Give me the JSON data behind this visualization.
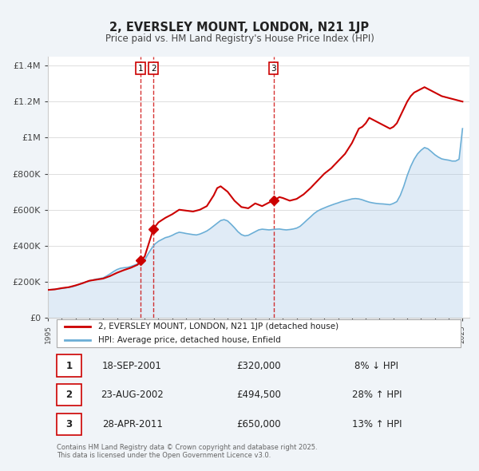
{
  "title": "2, EVERSLEY MOUNT, LONDON, N21 1JP",
  "subtitle": "Price paid vs. HM Land Registry's House Price Index (HPI)",
  "ylabel": "",
  "background_color": "#f0f4f8",
  "plot_bg_color": "#ffffff",
  "legend_label_red": "2, EVERSLEY MOUNT, LONDON, N21 1JP (detached house)",
  "legend_label_blue": "HPI: Average price, detached house, Enfield",
  "footer": "Contains HM Land Registry data © Crown copyright and database right 2025.\nThis data is licensed under the Open Government Licence v3.0.",
  "transactions": [
    {
      "num": 1,
      "date": "18-SEP-2001",
      "price": "£320,000",
      "hpi_change": "8% ↓ HPI",
      "year": 2001.72
    },
    {
      "num": 2,
      "date": "23-AUG-2002",
      "price": "£494,500",
      "hpi_change": "28% ↑ HPI",
      "year": 2002.64
    },
    {
      "num": 3,
      "date": "28-APR-2011",
      "price": "£650,000",
      "hpi_change": "13% ↑ HPI",
      "year": 2011.32
    }
  ],
  "hpi_color": "#a8c8e8",
  "hpi_line_color": "#6baed6",
  "price_color": "#cc0000",
  "vline_color": "#cc0000",
  "marker_color": "#cc0000",
  "ylim": [
    0,
    1450000
  ],
  "yticks": [
    0,
    200000,
    400000,
    600000,
    800000,
    1000000,
    1200000,
    1400000
  ],
  "ytick_labels": [
    "£0",
    "£200K",
    "£400K",
    "£600K",
    "£800K",
    "£1M",
    "£1.2M",
    "£1.4M"
  ],
  "hpi_data": {
    "years": [
      1995.0,
      1995.25,
      1995.5,
      1995.75,
      1996.0,
      1996.25,
      1996.5,
      1996.75,
      1997.0,
      1997.25,
      1997.5,
      1997.75,
      1998.0,
      1998.25,
      1998.5,
      1998.75,
      1999.0,
      1999.25,
      1999.5,
      1999.75,
      2000.0,
      2000.25,
      2000.5,
      2000.75,
      2001.0,
      2001.25,
      2001.5,
      2001.75,
      2002.0,
      2002.25,
      2002.5,
      2002.75,
      2003.0,
      2003.25,
      2003.5,
      2003.75,
      2004.0,
      2004.25,
      2004.5,
      2004.75,
      2005.0,
      2005.25,
      2005.5,
      2005.75,
      2006.0,
      2006.25,
      2006.5,
      2006.75,
      2007.0,
      2007.25,
      2007.5,
      2007.75,
      2008.0,
      2008.25,
      2008.5,
      2008.75,
      2009.0,
      2009.25,
      2009.5,
      2009.75,
      2010.0,
      2010.25,
      2010.5,
      2010.75,
      2011.0,
      2011.25,
      2011.5,
      2011.75,
      2012.0,
      2012.25,
      2012.5,
      2012.75,
      2013.0,
      2013.25,
      2013.5,
      2013.75,
      2014.0,
      2014.25,
      2014.5,
      2014.75,
      2015.0,
      2015.25,
      2015.5,
      2015.75,
      2016.0,
      2016.25,
      2016.5,
      2016.75,
      2017.0,
      2017.25,
      2017.5,
      2017.75,
      2018.0,
      2018.25,
      2018.5,
      2018.75,
      2019.0,
      2019.25,
      2019.5,
      2019.75,
      2020.0,
      2020.25,
      2020.5,
      2020.75,
      2021.0,
      2021.25,
      2021.5,
      2021.75,
      2022.0,
      2022.25,
      2022.5,
      2022.75,
      2023.0,
      2023.25,
      2023.5,
      2023.75,
      2024.0,
      2024.25,
      2024.5,
      2024.75,
      2025.0
    ],
    "values": [
      155000,
      157000,
      159000,
      161000,
      163000,
      166000,
      169000,
      172000,
      178000,
      185000,
      193000,
      200000,
      205000,
      210000,
      215000,
      218000,
      222000,
      232000,
      244000,
      257000,
      268000,
      275000,
      278000,
      280000,
      285000,
      292000,
      300000,
      308000,
      320000,
      355000,
      385000,
      410000,
      425000,
      435000,
      445000,
      450000,
      458000,
      468000,
      475000,
      472000,
      468000,
      465000,
      462000,
      460000,
      465000,
      473000,
      482000,
      495000,
      510000,
      525000,
      540000,
      545000,
      538000,
      520000,
      500000,
      478000,
      462000,
      455000,
      458000,
      468000,
      478000,
      488000,
      492000,
      490000,
      488000,
      490000,
      492000,
      493000,
      490000,
      488000,
      490000,
      493000,
      498000,
      508000,
      525000,
      543000,
      560000,
      578000,
      592000,
      602000,
      610000,
      618000,
      625000,
      632000,
      638000,
      645000,
      650000,
      655000,
      660000,
      662000,
      660000,
      655000,
      648000,
      642000,
      638000,
      635000,
      633000,
      632000,
      630000,
      628000,
      635000,
      645000,
      680000,
      730000,
      790000,
      840000,
      880000,
      910000,
      930000,
      945000,
      938000,
      922000,
      905000,
      892000,
      882000,
      878000,
      875000,
      870000,
      870000,
      880000,
      1050000
    ]
  },
  "price_data": {
    "years": [
      1995.0,
      1995.5,
      1996.0,
      1996.5,
      1997.0,
      1997.5,
      1998.0,
      1998.5,
      1999.0,
      1999.5,
      2000.0,
      2000.5,
      2001.0,
      2001.5,
      2001.72,
      2002.0,
      2002.64,
      2003.0,
      2003.5,
      2004.0,
      2004.5,
      2005.0,
      2005.5,
      2006.0,
      2006.5,
      2007.0,
      2007.25,
      2007.5,
      2008.0,
      2008.5,
      2009.0,
      2009.5,
      2010.0,
      2010.5,
      2011.0,
      2011.32,
      2011.75,
      2012.0,
      2012.5,
      2013.0,
      2013.5,
      2014.0,
      2014.5,
      2015.0,
      2015.5,
      2016.0,
      2016.5,
      2017.0,
      2017.25,
      2017.5,
      2017.75,
      2018.0,
      2018.25,
      2018.5,
      2018.75,
      2019.0,
      2019.25,
      2019.5,
      2019.75,
      2020.0,
      2020.25,
      2020.5,
      2020.75,
      2021.0,
      2021.25,
      2021.5,
      2021.75,
      2022.0,
      2022.25,
      2022.5,
      2022.75,
      2023.0,
      2023.25,
      2023.5,
      2023.75,
      2024.0,
      2024.25,
      2024.5,
      2024.75,
      2025.0
    ],
    "values": [
      155000,
      158000,
      165000,
      170000,
      180000,
      192000,
      206000,
      212000,
      218000,
      232000,
      250000,
      265000,
      278000,
      295000,
      320000,
      340000,
      494500,
      530000,
      555000,
      575000,
      600000,
      595000,
      590000,
      600000,
      620000,
      680000,
      720000,
      730000,
      700000,
      650000,
      615000,
      608000,
      635000,
      620000,
      640000,
      650000,
      670000,
      665000,
      650000,
      660000,
      685000,
      720000,
      760000,
      800000,
      830000,
      870000,
      910000,
      970000,
      1010000,
      1050000,
      1060000,
      1080000,
      1110000,
      1100000,
      1090000,
      1080000,
      1070000,
      1060000,
      1050000,
      1060000,
      1080000,
      1120000,
      1160000,
      1200000,
      1230000,
      1250000,
      1260000,
      1270000,
      1280000,
      1270000,
      1260000,
      1250000,
      1240000,
      1230000,
      1225000,
      1220000,
      1215000,
      1210000,
      1205000,
      1200000
    ]
  }
}
